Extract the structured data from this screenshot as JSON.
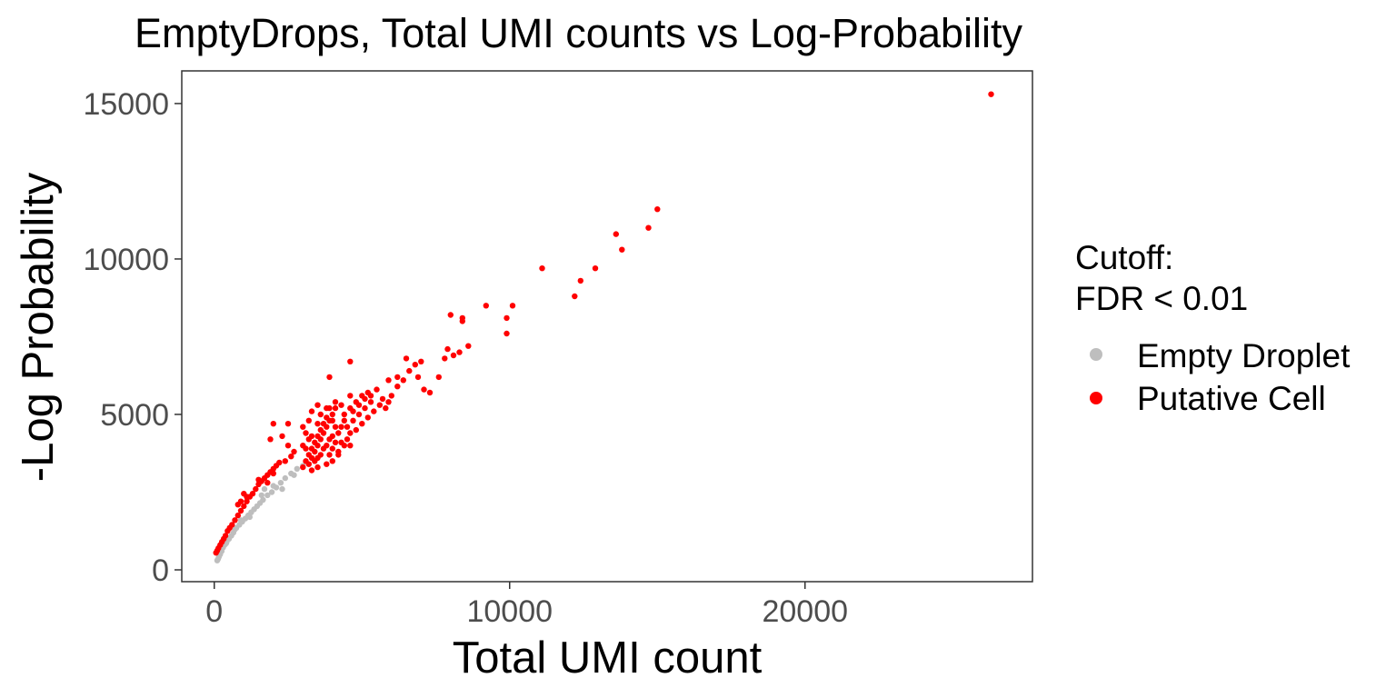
{
  "chart_data": {
    "type": "scatter",
    "title": "EmptyDrops, Total UMI counts vs Log-Probability",
    "xlabel": "Total UMI count",
    "ylabel": "-Log Probability",
    "xlim": [
      -1100,
      27700
    ],
    "ylim": [
      -380,
      16050
    ],
    "x_ticks": [
      0,
      10000,
      20000
    ],
    "y_ticks": [
      0,
      5000,
      10000,
      15000
    ],
    "x_tick_labels": [
      "0",
      "10000",
      "20000"
    ],
    "y_tick_labels": [
      "0",
      "5000",
      "10000",
      "15000"
    ],
    "grid": false,
    "legend": {
      "title_lines": [
        "Cutoff:",
        "FDR < 0.01"
      ],
      "position": "right"
    },
    "series": [
      {
        "name": "Empty Droplet",
        "color": "#bebebe",
        "points": [
          [
            100,
            300
          ],
          [
            130,
            350
          ],
          [
            160,
            420
          ],
          [
            200,
            500
          ],
          [
            250,
            600
          ],
          [
            300,
            720
          ],
          [
            350,
            800
          ],
          [
            420,
            900
          ],
          [
            500,
            1000
          ],
          [
            580,
            1100
          ],
          [
            650,
            1200
          ],
          [
            750,
            1350
          ],
          [
            850,
            1450
          ],
          [
            950,
            1550
          ],
          [
            1050,
            1650
          ],
          [
            1150,
            1750
          ],
          [
            1250,
            1850
          ],
          [
            1350,
            1950
          ],
          [
            1450,
            2050
          ],
          [
            1550,
            2150
          ],
          [
            1650,
            2250
          ],
          [
            1800,
            2400
          ],
          [
            1950,
            2500
          ],
          [
            2100,
            2650
          ],
          [
            2250,
            2800
          ],
          [
            2400,
            2950
          ],
          [
            2600,
            3100
          ],
          [
            2800,
            3250
          ],
          [
            3000,
            3350
          ],
          [
            1700,
            2600
          ],
          [
            2300,
            2600
          ],
          [
            1200,
            1700
          ],
          [
            900,
            1600
          ],
          [
            700,
            1300
          ],
          [
            400,
            850
          ],
          [
            2000,
            2700
          ],
          [
            1600,
            2400
          ],
          [
            2700,
            3050
          ]
        ]
      },
      {
        "name": "Putative Cell",
        "color": "#ff0000",
        "points": [
          [
            60,
            550
          ],
          [
            100,
            620
          ],
          [
            140,
            700
          ],
          [
            200,
            800
          ],
          [
            260,
            900
          ],
          [
            320,
            1000
          ],
          [
            380,
            1100
          ],
          [
            450,
            1250
          ],
          [
            520,
            1350
          ],
          [
            600,
            1450
          ],
          [
            700,
            1600
          ],
          [
            800,
            1750
          ],
          [
            900,
            1900
          ],
          [
            1000,
            2050
          ],
          [
            1100,
            2200
          ],
          [
            1200,
            2350
          ],
          [
            900,
            2200
          ],
          [
            1000,
            2450
          ],
          [
            1100,
            2350
          ],
          [
            800,
            2100
          ],
          [
            1300,
            2450
          ],
          [
            1400,
            2600
          ],
          [
            1500,
            2750
          ],
          [
            1600,
            2850
          ],
          [
            1700,
            2950
          ],
          [
            1800,
            3050
          ],
          [
            1900,
            3150
          ],
          [
            2000,
            3250
          ],
          [
            2100,
            3350
          ],
          [
            2200,
            3450
          ],
          [
            1500,
            2900
          ],
          [
            1800,
            2800
          ],
          [
            2000,
            3100
          ],
          [
            2400,
            3500
          ],
          [
            2600,
            3650
          ],
          [
            2700,
            3800
          ],
          [
            2500,
            4000
          ],
          [
            2300,
            4300
          ],
          [
            2000,
            4700
          ],
          [
            2500,
            4700
          ],
          [
            1900,
            4200
          ],
          [
            3000,
            3300
          ],
          [
            3100,
            3500
          ],
          [
            3200,
            3700
          ],
          [
            3300,
            3900
          ],
          [
            3400,
            4100
          ],
          [
            3500,
            4300
          ],
          [
            3600,
            4500
          ],
          [
            3700,
            4700
          ],
          [
            3800,
            4900
          ],
          [
            3200,
            4200
          ],
          [
            3300,
            3600
          ],
          [
            3400,
            3800
          ],
          [
            3500,
            4000
          ],
          [
            3600,
            4200
          ],
          [
            3700,
            4400
          ],
          [
            3800,
            4600
          ],
          [
            3900,
            4800
          ],
          [
            4000,
            5000
          ],
          [
            4100,
            5200
          ],
          [
            4200,
            4400
          ],
          [
            4300,
            4600
          ],
          [
            4400,
            4800
          ],
          [
            4500,
            4200
          ],
          [
            4600,
            4000
          ],
          [
            3000,
            4000
          ],
          [
            3100,
            4400
          ],
          [
            3200,
            4800
          ],
          [
            3300,
            5100
          ],
          [
            3500,
            5300
          ],
          [
            3000,
            4600
          ],
          [
            3800,
            3400
          ],
          [
            3900,
            3700
          ],
          [
            4000,
            3900
          ],
          [
            4100,
            4100
          ],
          [
            4200,
            3800
          ],
          [
            3500,
            3600
          ],
          [
            3700,
            3900
          ],
          [
            3900,
            4200
          ],
          [
            4100,
            4600
          ],
          [
            4300,
            4100
          ],
          [
            3100,
            3900
          ],
          [
            3300,
            4300
          ],
          [
            3500,
            4700
          ],
          [
            3600,
            5000
          ],
          [
            3800,
            5200
          ],
          [
            3200,
            3400
          ],
          [
            3400,
            3500
          ],
          [
            3600,
            3700
          ],
          [
            3800,
            4000
          ],
          [
            4000,
            4300
          ],
          [
            4500,
            4600
          ],
          [
            4700,
            4800
          ],
          [
            4900,
            5000
          ],
          [
            5100,
            5200
          ],
          [
            5300,
            5400
          ],
          [
            4800,
            4500
          ],
          [
            5000,
            4700
          ],
          [
            5200,
            4900
          ],
          [
            5400,
            5100
          ],
          [
            5600,
            5300
          ],
          [
            4400,
            5000
          ],
          [
            4600,
            5200
          ],
          [
            4800,
            5400
          ],
          [
            5000,
            5600
          ],
          [
            5200,
            5700
          ],
          [
            4700,
            5100
          ],
          [
            4900,
            5300
          ],
          [
            5100,
            5500
          ],
          [
            5300,
            5600
          ],
          [
            5500,
            5800
          ],
          [
            5700,
            5500
          ],
          [
            5900,
            5400
          ],
          [
            6000,
            5600
          ],
          [
            5800,
            5200
          ],
          [
            4600,
            4400
          ],
          [
            4300,
            5300
          ],
          [
            4100,
            5400
          ],
          [
            4600,
            5600
          ],
          [
            3900,
            5200
          ],
          [
            4000,
            4800
          ],
          [
            4400,
            4000
          ],
          [
            4200,
            3700
          ],
          [
            4000,
            3500
          ],
          [
            3500,
            3300
          ],
          [
            3300,
            3200
          ],
          [
            6200,
            5900
          ],
          [
            6400,
            6100
          ],
          [
            6600,
            6400
          ],
          [
            6800,
            6600
          ],
          [
            6500,
            6800
          ],
          [
            6900,
            6200
          ],
          [
            7000,
            6700
          ],
          [
            7100,
            5800
          ],
          [
            7300,
            5700
          ],
          [
            6200,
            6200
          ],
          [
            5900,
            6100
          ],
          [
            7600,
            6200
          ],
          [
            7900,
            7100
          ],
          [
            8100,
            6900
          ],
          [
            7800,
            6800
          ],
          [
            8300,
            7000
          ],
          [
            8600,
            7200
          ],
          [
            4600,
            6700
          ],
          [
            3900,
            6200
          ],
          [
            8000,
            8200
          ],
          [
            8400,
            8000
          ],
          [
            8400,
            8100
          ],
          [
            9200,
            8500
          ],
          [
            9900,
            7600
          ],
          [
            9900,
            8100
          ],
          [
            10100,
            8500
          ],
          [
            11100,
            9700
          ],
          [
            12200,
            8800
          ],
          [
            12400,
            9300
          ],
          [
            12900,
            9700
          ],
          [
            13600,
            10800
          ],
          [
            13800,
            10300
          ],
          [
            14700,
            11000
          ],
          [
            15000,
            11600
          ],
          [
            26300,
            15300
          ]
        ]
      }
    ]
  }
}
